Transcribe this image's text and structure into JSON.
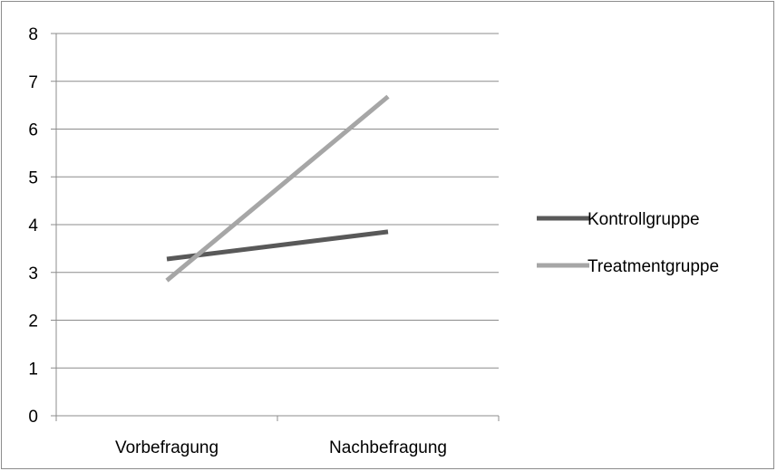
{
  "chart_data": {
    "type": "line",
    "title": "",
    "xlabel": "",
    "ylabel": "",
    "categories": [
      "Vorbefragung",
      "Nachbefragung"
    ],
    "ylim": [
      0,
      8
    ],
    "yticks": [
      "0",
      "1",
      "2",
      "3",
      "4",
      "5",
      "6",
      "7",
      "8"
    ],
    "grid": true,
    "legend_position": "right",
    "series": [
      {
        "name": "Kontrollgruppe",
        "values": [
          3.28,
          3.85
        ],
        "color": "#595959"
      },
      {
        "name": "Treatmentgruppe",
        "values": [
          2.83,
          6.68
        ],
        "color": "#a6a6a6"
      }
    ]
  }
}
